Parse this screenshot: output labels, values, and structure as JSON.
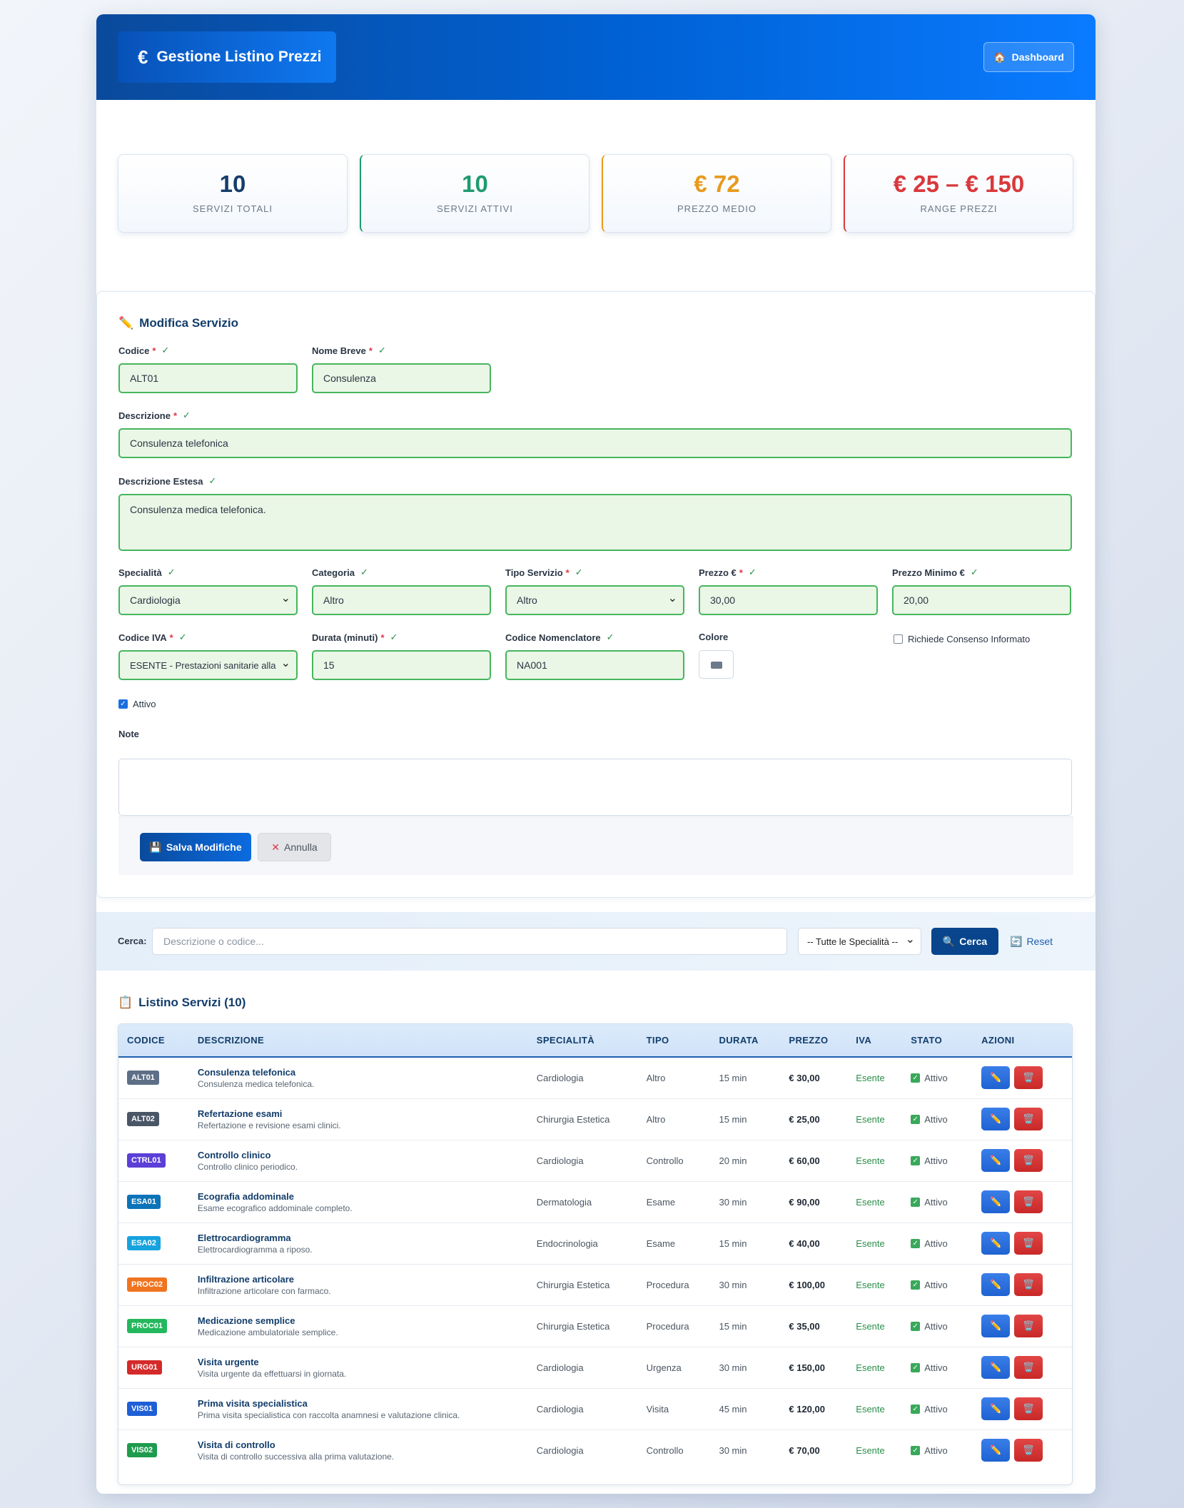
{
  "header": {
    "title": "Gestione Listino Prezzi",
    "title_icon": "€",
    "dashboard_label": "Dashboard",
    "dashboard_icon": "🏠"
  },
  "stats": [
    {
      "value": "10",
      "label": "Servizi Totali",
      "color": "#163e6c"
    },
    {
      "value": "10",
      "label": "Servizi Attivi",
      "color": "#1f9b6f"
    },
    {
      "value": "€ 72",
      "label": "Prezzo Medio",
      "color": "#e89a1e"
    },
    {
      "value": "€ 25 – € 150",
      "label": "Range Prezzi",
      "color": "#d9393c"
    }
  ],
  "form": {
    "title": "Modifica Servizio",
    "title_icon": "✏️",
    "fields": {
      "codice": {
        "label": "Codice",
        "value": "ALT01"
      },
      "nome_breve": {
        "label": "Nome Breve",
        "value": "Consulenza"
      },
      "descrizione": {
        "label": "Descrizione",
        "value": "Consulenza telefonica"
      },
      "descrizione_estesa": {
        "label": "Descrizione Estesa",
        "value": "Consulenza medica telefonica."
      },
      "specialita": {
        "label": "Specialità",
        "value": "Cardiologia"
      },
      "categoria": {
        "label": "Categoria",
        "value": "Altro"
      },
      "tipo_servizio": {
        "label": "Tipo Servizio",
        "value": "Altro"
      },
      "prezzo": {
        "label": "Prezzo €",
        "value": "30,00"
      },
      "prezzo_minimo": {
        "label": "Prezzo Minimo €",
        "value": "20,00"
      },
      "codice_iva": {
        "label": "Codice IVA",
        "value": "ESENTE - Prestazioni sanitarie alla p"
      },
      "durata": {
        "label": "Durata (minuti)",
        "value": "15"
      },
      "codice_nomenclatore": {
        "label": "Codice Nomenclatore",
        "value": "NA001"
      },
      "colore": {
        "label": "Colore"
      },
      "consenso": {
        "label": "Richiede Consenso Informato",
        "checked": false
      },
      "attivo": {
        "label": "Attivo",
        "checked": true
      },
      "note": {
        "label": "Note",
        "value": ""
      }
    },
    "required_mark": "*",
    "valid_mark": "✓",
    "save_label": "Salva Modifiche",
    "save_icon": "💾",
    "cancel_label": "Annulla",
    "cancel_icon": "✕"
  },
  "search": {
    "label": "Cerca:",
    "placeholder": "Descrizione o codice...",
    "specialty_selected": "-- Tutte le Specialità --",
    "search_label": "Cerca",
    "search_icon": "🔍",
    "reset_label": "Reset",
    "reset_icon": "🔄"
  },
  "table": {
    "title": "Listino Servizi (10)",
    "title_icon": "📋",
    "columns": [
      "CODICE",
      "DESCRIZIONE",
      "SPECIALITÀ",
      "TIPO",
      "DURATA",
      "PREZZO",
      "IVA",
      "STATO",
      "AZIONI"
    ],
    "rows": [
      {
        "code": "ALT01",
        "badge_color": "#5c6f86",
        "title": "Consulenza telefonica",
        "subtitle": "Consulenza medica telefonica.",
        "specialty": "Cardiologia",
        "type": "Altro",
        "duration": "15 min",
        "price": "€ 30,00",
        "iva": "Esente",
        "status": "Attivo"
      },
      {
        "code": "ALT02",
        "badge_color": "#4a5566",
        "title": "Refertazione esami",
        "subtitle": "Refertazione e revisione esami clinici.",
        "specialty": "Chirurgia Estetica",
        "type": "Altro",
        "duration": "15 min",
        "price": "€ 25,00",
        "iva": "Esente",
        "status": "Attivo"
      },
      {
        "code": "CTRL01",
        "badge_color": "#5b3fd6",
        "title": "Controllo clinico",
        "subtitle": "Controllo clinico periodico.",
        "specialty": "Cardiologia",
        "type": "Controllo",
        "duration": "20 min",
        "price": "€ 60,00",
        "iva": "Esente",
        "status": "Attivo"
      },
      {
        "code": "ESA01",
        "badge_color": "#0b73b8",
        "title": "Ecografia addominale",
        "subtitle": "Esame ecografico addominale completo.",
        "specialty": "Dermatologia",
        "type": "Esame",
        "duration": "30 min",
        "price": "€ 90,00",
        "iva": "Esente",
        "status": "Attivo"
      },
      {
        "code": "ESA02",
        "badge_color": "#16a3de",
        "title": "Elettrocardiogramma",
        "subtitle": "Elettrocardiogramma a riposo.",
        "specialty": "Endocrinologia",
        "type": "Esame",
        "duration": "15 min",
        "price": "€ 40,00",
        "iva": "Esente",
        "status": "Attivo"
      },
      {
        "code": "PROC02",
        "badge_color": "#f07420",
        "title": "Infiltrazione articolare",
        "subtitle": "Infiltrazione articolare con farmaco.",
        "specialty": "Chirurgia Estetica",
        "type": "Procedura",
        "duration": "30 min",
        "price": "€ 100,00",
        "iva": "Esente",
        "status": "Attivo"
      },
      {
        "code": "PROC01",
        "badge_color": "#24b85c",
        "title": "Medicazione semplice",
        "subtitle": "Medicazione ambulatoriale semplice.",
        "specialty": "Chirurgia Estetica",
        "type": "Procedura",
        "duration": "15 min",
        "price": "€ 35,00",
        "iva": "Esente",
        "status": "Attivo"
      },
      {
        "code": "URG01",
        "badge_color": "#d42a2a",
        "title": "Visita urgente",
        "subtitle": "Visita urgente da effettuarsi in giornata.",
        "specialty": "Cardiologia",
        "type": "Urgenza",
        "duration": "30 min",
        "price": "€ 150,00",
        "iva": "Esente",
        "status": "Attivo"
      },
      {
        "code": "VIS01",
        "badge_color": "#1f5fd6",
        "title": "Prima visita specialistica",
        "subtitle": "Prima visita specialistica con raccolta anamnesi e valutazione clinica.",
        "specialty": "Cardiologia",
        "type": "Visita",
        "duration": "45 min",
        "price": "€ 120,00",
        "iva": "Esente",
        "status": "Attivo"
      },
      {
        "code": "VIS02",
        "badge_color": "#1f9b4e",
        "title": "Visita di controllo",
        "subtitle": "Visita di controllo successiva alla prima valutazione.",
        "specialty": "Cardiologia",
        "type": "Controllo",
        "duration": "30 min",
        "price": "€ 70,00",
        "iva": "Esente",
        "status": "Attivo"
      }
    ],
    "edit_icon": "✏️",
    "delete_icon": "🗑️",
    "status_check": "✓"
  }
}
